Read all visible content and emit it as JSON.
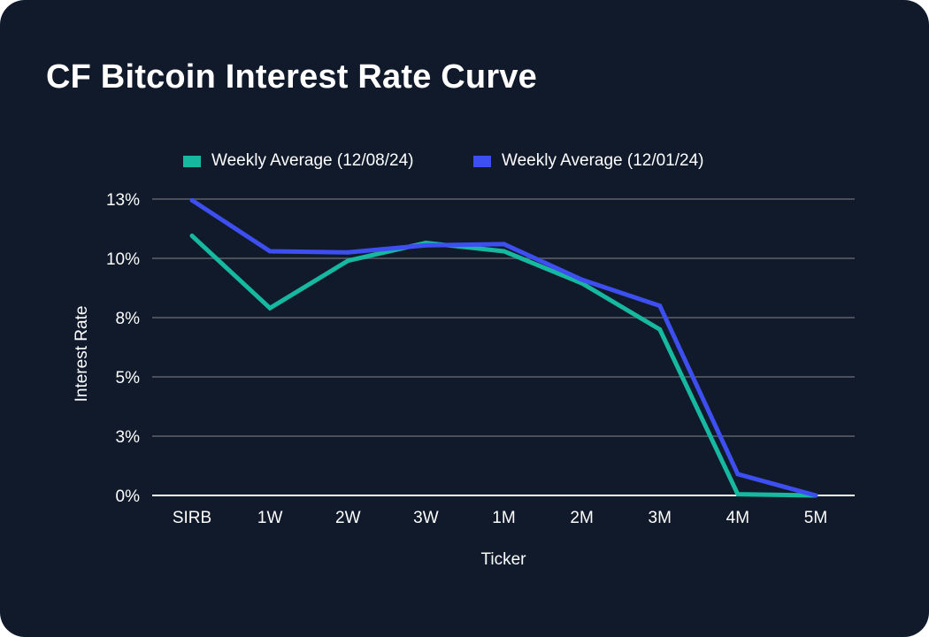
{
  "colors": {
    "background": "#101a2b",
    "grid": "#4a4f59",
    "baseline": "#ffffff",
    "series_a": "#16b8a0",
    "series_b": "#3d4ff0"
  },
  "chart_data": {
    "type": "line",
    "title": "CF Bitcoin Interest Rate Curve",
    "xlabel": "Ticker",
    "ylabel": "Interest Rate",
    "categories": [
      "SIRB",
      "1W",
      "2W",
      "3W",
      "1M",
      "2M",
      "3M",
      "4M",
      "5M"
    ],
    "ylim": [
      0,
      12.5
    ],
    "yticks": [
      0,
      2.5,
      5,
      7.5,
      10,
      12.5
    ],
    "ytick_labels": [
      "0%",
      "3%",
      "5%",
      "8%",
      "10%",
      "13%"
    ],
    "grid": true,
    "legend_position": "top",
    "series": [
      {
        "name": "Weekly Average (12/08/24)",
        "color": "#16b8a0",
        "values": [
          10.95,
          7.9,
          9.9,
          10.65,
          10.3,
          8.95,
          7.0,
          0.05,
          0.0
        ]
      },
      {
        "name": "Weekly Average (12/01/24)",
        "color": "#3d4ff0",
        "values": [
          12.45,
          10.3,
          10.25,
          10.55,
          10.6,
          9.1,
          8.0,
          0.9,
          0.0
        ]
      }
    ]
  }
}
